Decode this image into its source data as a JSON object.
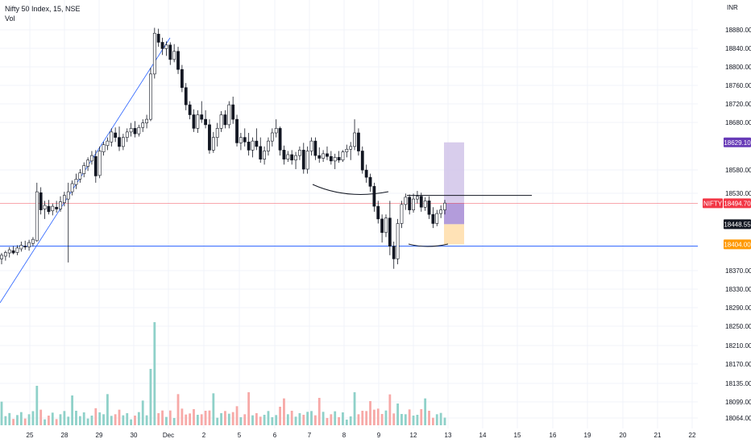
{
  "header": {
    "title": "Nifty 50 Index, 15, NSE",
    "volume_label": "Vol"
  },
  "currency": "INR",
  "colors": {
    "up": "#26a69a",
    "down": "#ef5350",
    "candle": "#131722",
    "vol_up": "#8fd1c9",
    "vol_down": "#f7a9a7",
    "trend": "#2962ff",
    "nifty_line": "#f23645",
    "support_line": "#2962ff",
    "target_zone": "#d1c4e9",
    "stop_zone": "#ffe0b2",
    "target_label": "#673ab7",
    "stop_label": "#ff9800",
    "price_label": "#131722"
  },
  "chart_data": {
    "type": "candlestick",
    "y_axis": {
      "range": [
        18040,
        18910
      ],
      "ticks": [
        18880,
        18840,
        18800,
        18760,
        18720,
        18680,
        18580,
        18530,
        18370,
        18330,
        18290,
        18250,
        18210,
        18170,
        18135,
        18099,
        18064
      ],
      "tick_labels": [
        "18880.00",
        "18840.00",
        "18800.00",
        "18760.00",
        "18720.00",
        "18680.00",
        "18580.00",
        "18530.00",
        "18370.00",
        "18330.00",
        "18290.00",
        "18250.00",
        "18210.00",
        "18170.00",
        "18135.00",
        "18099.00",
        "18064.00"
      ]
    },
    "x_axis": {
      "labels": [
        "25",
        "28",
        "29",
        "30",
        "Dec",
        "2",
        "5",
        "6",
        "7",
        "8",
        "9",
        "12",
        "13",
        "14",
        "15",
        "16",
        "19",
        "20",
        "21",
        "22"
      ]
    },
    "price_labels": [
      {
        "text": "18629.10",
        "value": 18629.1,
        "role": "target"
      },
      {
        "name": "NIFTY",
        "text": "18494.70",
        "value": 18494.7,
        "role": "last"
      },
      {
        "text": "18448.55",
        "value": 18448.55,
        "role": "cursor"
      },
      {
        "text": "18404.00",
        "value": 18404.0,
        "role": "stop"
      }
    ],
    "horizontal_levels": [
      18494.7,
      18400.0,
      18512.0
    ],
    "position_tool": {
      "type": "long",
      "entry": 18448.55,
      "target": 18629.1,
      "stop": 18404.0
    },
    "trendline": {
      "from": [
        0,
        18310
      ],
      "to": [
        41,
        18858
      ]
    },
    "candles_ohlc": [
      [
        18372,
        18385,
        18360,
        18380
      ],
      [
        18378,
        18390,
        18368,
        18386
      ],
      [
        18385,
        18398,
        18375,
        18392
      ],
      [
        18390,
        18400,
        18382,
        18385
      ],
      [
        18386,
        18402,
        18380,
        18396
      ],
      [
        18394,
        18410,
        18388,
        18402
      ],
      [
        18400,
        18412,
        18392,
        18398
      ],
      [
        18398,
        18414,
        18390,
        18408
      ],
      [
        18406,
        18420,
        18400,
        18415
      ],
      [
        18412,
        18540,
        18410,
        18520
      ],
      [
        18518,
        18530,
        18470,
        18480
      ],
      [
        18482,
        18500,
        18460,
        18490
      ],
      [
        18488,
        18502,
        18470,
        18476
      ],
      [
        18478,
        18494,
        18468,
        18488
      ],
      [
        18486,
        18500,
        18474,
        18482
      ],
      [
        18482,
        18510,
        18476,
        18498
      ],
      [
        18496,
        18520,
        18488,
        18512
      ],
      [
        18504,
        18540,
        18364,
        18520
      ],
      [
        18520,
        18545,
        18512,
        18538
      ],
      [
        18536,
        18560,
        18526,
        18548
      ],
      [
        18548,
        18570,
        18540,
        18562
      ],
      [
        18560,
        18585,
        18552,
        18578
      ],
      [
        18576,
        18596,
        18566,
        18590
      ],
      [
        18588,
        18610,
        18580,
        18600
      ],
      [
        18598,
        18612,
        18540,
        18555
      ],
      [
        18556,
        18620,
        18550,
        18610
      ],
      [
        18608,
        18630,
        18600,
        18624
      ],
      [
        18622,
        18640,
        18612,
        18632
      ],
      [
        18630,
        18660,
        18620,
        18652
      ],
      [
        18650,
        18662,
        18630,
        18640
      ],
      [
        18640,
        18664,
        18610,
        18620
      ],
      [
        18620,
        18648,
        18612,
        18640
      ],
      [
        18640,
        18660,
        18630,
        18652
      ],
      [
        18652,
        18672,
        18642,
        18660
      ],
      [
        18660,
        18676,
        18640,
        18648
      ],
      [
        18648,
        18668,
        18642,
        18662
      ],
      [
        18662,
        18680,
        18652,
        18672
      ],
      [
        18672,
        18690,
        18660,
        18680
      ],
      [
        18680,
        18794,
        18676,
        18780
      ],
      [
        18780,
        18882,
        18770,
        18870
      ],
      [
        18868,
        18880,
        18840,
        18850
      ],
      [
        18850,
        18860,
        18822,
        18836
      ],
      [
        18836,
        18852,
        18820,
        18844
      ],
      [
        18844,
        18850,
        18800,
        18812
      ],
      [
        18812,
        18846,
        18806,
        18830
      ],
      [
        18830,
        18840,
        18780,
        18790
      ],
      [
        18790,
        18800,
        18740,
        18750
      ],
      [
        18750,
        18760,
        18700,
        18712
      ],
      [
        18712,
        18720,
        18680,
        18690
      ],
      [
        18690,
        18702,
        18652,
        18660
      ],
      [
        18660,
        18700,
        18650,
        18690
      ],
      [
        18690,
        18720,
        18672,
        18680
      ],
      [
        18680,
        18700,
        18660,
        18668
      ],
      [
        18668,
        18680,
        18604,
        18612
      ],
      [
        18612,
        18652,
        18606,
        18640
      ],
      [
        18640,
        18672,
        18620,
        18660
      ],
      [
        18660,
        18698,
        18652,
        18690
      ],
      [
        18690,
        18700,
        18660,
        18668
      ],
      [
        18668,
        18720,
        18660,
        18712
      ],
      [
        18712,
        18730,
        18670,
        18680
      ],
      [
        18680,
        18690,
        18620,
        18628
      ],
      [
        18628,
        18650,
        18612,
        18640
      ],
      [
        18640,
        18660,
        18620,
        18630
      ],
      [
        18630,
        18650,
        18600,
        18612
      ],
      [
        18612,
        18640,
        18596,
        18632
      ],
      [
        18632,
        18660,
        18612,
        18620
      ],
      [
        18620,
        18640,
        18584,
        18592
      ],
      [
        18592,
        18620,
        18580,
        18610
      ],
      [
        18610,
        18640,
        18600,
        18632
      ],
      [
        18632,
        18660,
        18620,
        18650
      ],
      [
        18650,
        18680,
        18640,
        18660
      ],
      [
        18660,
        18664,
        18600,
        18612
      ],
      [
        18612,
        18622,
        18580,
        18592
      ],
      [
        18592,
        18610,
        18586,
        18602
      ],
      [
        18602,
        18612,
        18580,
        18590
      ],
      [
        18590,
        18608,
        18570,
        18600
      ],
      [
        18600,
        18620,
        18590,
        18612
      ],
      [
        18612,
        18628,
        18560,
        18570
      ],
      [
        18570,
        18620,
        18560,
        18610
      ],
      [
        18610,
        18640,
        18600,
        18632
      ],
      [
        18632,
        18640,
        18590,
        18600
      ],
      [
        18600,
        18618,
        18584,
        18594
      ],
      [
        18594,
        18612,
        18586,
        18604
      ],
      [
        18604,
        18620,
        18590,
        18598
      ],
      [
        18598,
        18610,
        18580,
        18588
      ],
      [
        18588,
        18604,
        18570,
        18596
      ],
      [
        18596,
        18610,
        18584,
        18590
      ],
      [
        18590,
        18612,
        18586,
        18608
      ],
      [
        18608,
        18624,
        18596,
        18614
      ],
      [
        18614,
        18630,
        18590,
        18620
      ],
      [
        18620,
        18680,
        18612,
        18650
      ],
      [
        18650,
        18660,
        18600,
        18610
      ],
      [
        18610,
        18620,
        18560,
        18568
      ],
      [
        18568,
        18580,
        18540,
        18552
      ],
      [
        18552,
        18560,
        18520,
        18532
      ],
      [
        18532,
        18540,
        18476,
        18488
      ],
      [
        18488,
        18500,
        18450,
        18460
      ],
      [
        18460,
        18470,
        18408,
        18430
      ],
      [
        18430,
        18470,
        18420,
        18462
      ],
      [
        18462,
        18500,
        18380,
        18400
      ],
      [
        18400,
        18410,
        18350,
        18372
      ],
      [
        18372,
        18460,
        18360,
        18450
      ],
      [
        18450,
        18500,
        18440,
        18492
      ],
      [
        18492,
        18516,
        18480,
        18508
      ],
      [
        18508,
        18514,
        18470,
        18480
      ],
      [
        18480,
        18516,
        18474,
        18504
      ],
      [
        18504,
        18522,
        18494,
        18510
      ],
      [
        18510,
        18518,
        18476,
        18486
      ],
      [
        18486,
        18508,
        18478,
        18500
      ],
      [
        18500,
        18510,
        18460,
        18470
      ],
      [
        18470,
        18486,
        18440,
        18450
      ],
      [
        18450,
        18480,
        18444,
        18472
      ],
      [
        18472,
        18490,
        18462,
        18480
      ],
      [
        18480,
        18502,
        18470,
        18495
      ]
    ],
    "volume_note": "volume bars shown below price, scale unlabeled"
  }
}
